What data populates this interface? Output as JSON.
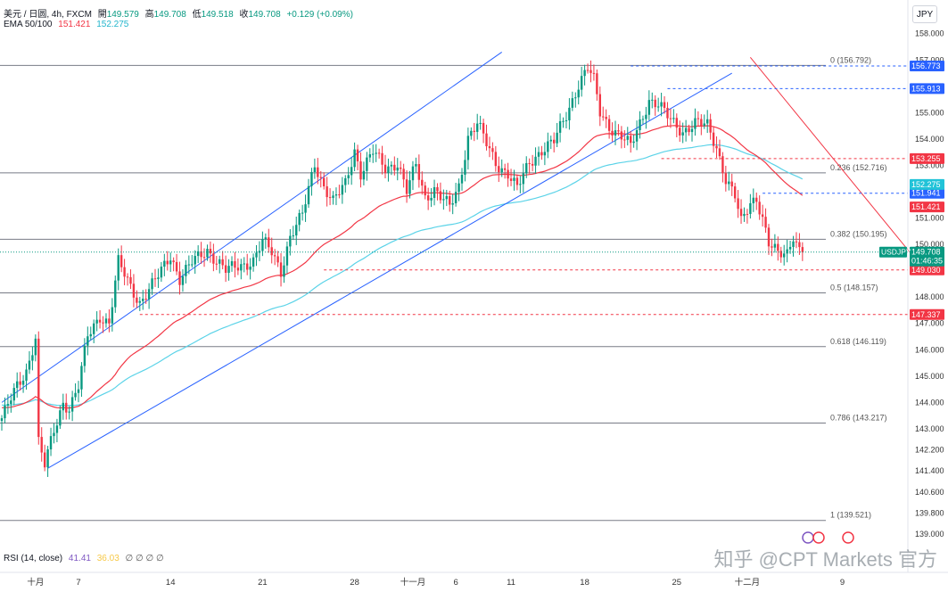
{
  "header": {
    "symbol_line": "美元 / 日圆, 4h, FXCM",
    "open_label": "開",
    "open": "149.579",
    "high_label": "高",
    "high": "149.708",
    "low_label": "低",
    "low": "149.518",
    "close_label": "收",
    "close": "149.708",
    "change": "+0.129 (+0.09%)",
    "ema_label": "EMA 50/100",
    "ema50": "151.421",
    "ema100": "152.275"
  },
  "currency": "JPY",
  "rsi": {
    "label": "RSI (14, close)",
    "value1": "41.41",
    "value2": "36.03",
    "zeros": "∅ ∅ ∅ ∅"
  },
  "watermark": "知乎 @CPT Markets 官方",
  "colors": {
    "up": "#089981",
    "down": "#f23645",
    "ema50": "#f23645",
    "ema100": "#5bd3e8",
    "channel": "#2962ff",
    "blue_level": "#2962ff",
    "red_level": "#f23645",
    "fib": "#787b86"
  },
  "chart_data": {
    "type": "candlestick",
    "symbol": "USDJPY",
    "timeframe": "4h",
    "ylim": [
      138.8,
      158.6
    ],
    "y_ticks": [
      "158.000",
      "157.000",
      "155.000",
      "154.000",
      "153.000",
      "151.000",
      "150.000",
      "149.000",
      "148.000",
      "147.000",
      "146.000",
      "145.000",
      "144.000",
      "143.000",
      "142.200",
      "141.400",
      "140.600",
      "139.800",
      "139.000"
    ],
    "y_tick_values": [
      158.0,
      157.0,
      155.0,
      154.0,
      153.0,
      151.0,
      150.0,
      149.0,
      148.0,
      147.0,
      146.0,
      145.0,
      144.0,
      143.0,
      142.2,
      141.4,
      140.6,
      139.8,
      139.0
    ],
    "x_ticks": [
      {
        "label": "十月",
        "index": 11
      },
      {
        "label": "7",
        "index": 25
      },
      {
        "label": "14",
        "index": 55
      },
      {
        "label": "21",
        "index": 85
      },
      {
        "label": "28",
        "index": 115
      },
      {
        "label": "十一月",
        "index": 134
      },
      {
        "label": "6",
        "index": 148
      },
      {
        "label": "11",
        "index": 166
      },
      {
        "label": "18",
        "index": 190
      },
      {
        "label": "25",
        "index": 220
      },
      {
        "label": "十二月",
        "index": 243
      },
      {
        "label": "9",
        "index": 274
      }
    ],
    "candle_count": 286,
    "last_index": 261,
    "anchors": [
      [
        0,
        143.4
      ],
      [
        5,
        144.6
      ],
      [
        8,
        145.2
      ],
      [
        11,
        146.5
      ],
      [
        12,
        142.5
      ],
      [
        14,
        141.6
      ],
      [
        17,
        142.9
      ],
      [
        20,
        144.0
      ],
      [
        22,
        143.8
      ],
      [
        25,
        144.6
      ],
      [
        28,
        146.5
      ],
      [
        32,
        147.3
      ],
      [
        35,
        147.0
      ],
      [
        38,
        149.3
      ],
      [
        42,
        148.4
      ],
      [
        45,
        147.8
      ],
      [
        50,
        148.6
      ],
      [
        55,
        149.6
      ],
      [
        58,
        148.7
      ],
      [
        62,
        149.3
      ],
      [
        67,
        149.8
      ],
      [
        70,
        149.4
      ],
      [
        73,
        149.0
      ],
      [
        78,
        149.2
      ],
      [
        82,
        149.4
      ],
      [
        85,
        150.1
      ],
      [
        88,
        149.7
      ],
      [
        91,
        149.0
      ],
      [
        94,
        150.3
      ],
      [
        98,
        151.1
      ],
      [
        102,
        153.1
      ],
      [
        105,
        152.2
      ],
      [
        108,
        151.6
      ],
      [
        112,
        152.3
      ],
      [
        115,
        153.6
      ],
      [
        117,
        152.7
      ],
      [
        121,
        153.5
      ],
      [
        125,
        152.9
      ],
      [
        129,
        153.1
      ],
      [
        132,
        152.0
      ],
      [
        135,
        153.0
      ],
      [
        138,
        151.8
      ],
      [
        141,
        152.1
      ],
      [
        143,
        151.8
      ],
      [
        146,
        151.4
      ],
      [
        149,
        152.2
      ],
      [
        152,
        154.1
      ],
      [
        155,
        154.6
      ],
      [
        158,
        153.8
      ],
      [
        161,
        153.1
      ],
      [
        165,
        152.7
      ],
      [
        168,
        152.1
      ],
      [
        172,
        153.1
      ],
      [
        176,
        153.6
      ],
      [
        180,
        153.9
      ],
      [
        184,
        154.9
      ],
      [
        188,
        156.1
      ],
      [
        191,
        156.7
      ],
      [
        193,
        156.2
      ],
      [
        195,
        155.0
      ],
      [
        198,
        154.5
      ],
      [
        202,
        154.1
      ],
      [
        205,
        153.7
      ],
      [
        208,
        154.6
      ],
      [
        211,
        155.5
      ],
      [
        214,
        155.3
      ],
      [
        218,
        154.7
      ],
      [
        222,
        154.3
      ],
      [
        226,
        154.6
      ],
      [
        230,
        154.5
      ],
      [
        233,
        153.7
      ],
      [
        236,
        152.5
      ],
      [
        239,
        151.8
      ],
      [
        241,
        150.8
      ],
      [
        244,
        151.6
      ],
      [
        246,
        151.8
      ],
      [
        248,
        151.0
      ],
      [
        250,
        150.0
      ],
      [
        253,
        149.6
      ],
      [
        256,
        149.7
      ],
      [
        258,
        150.4
      ],
      [
        260,
        149.8
      ],
      [
        262,
        149.5
      ],
      [
        264,
        148.7
      ],
      [
        266,
        149.1
      ],
      [
        268,
        149.7
      ]
    ],
    "candles_note_levels": {
      "fib": [
        {
          "label": "0 (156.792)",
          "value": 156.792
        },
        {
          "label": "0.236 (152.716)",
          "value": 152.716
        },
        {
          "label": "0.382 (150.195)",
          "value": 150.195
        },
        {
          "label": "0.5 (148.157)",
          "value": 148.157
        },
        {
          "label": "0.618 (146.119)",
          "value": 146.119
        },
        {
          "label": "0.786 (143.217)",
          "value": 143.217
        },
        {
          "label": "1 (139.521)",
          "value": 139.521
        }
      ],
      "horizontal_levels": [
        {
          "label": "156.773",
          "value": 156.773,
          "color": "#2962ff",
          "start_index": 205
        },
        {
          "label": "155.913",
          "value": 155.913,
          "color": "#2962ff",
          "start_index": 217
        },
        {
          "label": "153.255",
          "value": 153.255,
          "color": "#f23645",
          "start_index": 215
        },
        {
          "label": "151.941",
          "value": 151.941,
          "color": "#2962ff",
          "start_index": 248
        },
        {
          "label": "149.030",
          "value": 149.03,
          "color": "#f23645",
          "start_index": 105
        },
        {
          "label": "147.337",
          "value": 147.337,
          "color": "#f23645",
          "start_index": 45
        }
      ],
      "price_labels": [
        {
          "label": "152.275",
          "value": 152.275,
          "bg": "#22c3d8"
        },
        {
          "label": "151.421",
          "value": 151.421,
          "bg": "#f23645"
        },
        {
          "label": "149.708",
          "value": 149.708,
          "bg": "#089981",
          "sub": "01:46:35"
        }
      ],
      "current_symbol_label": "USDJPY",
      "trend_lines": [
        {
          "name": "channel-upper",
          "color": "#2962ff",
          "from": [
            0,
            144.0
          ],
          "to": [
            163,
            157.3
          ]
        },
        {
          "name": "channel-lower",
          "color": "#2962ff",
          "from": [
            15,
            141.5
          ],
          "to": [
            238,
            156.5
          ]
        },
        {
          "name": "downtrend",
          "color": "#f23645",
          "from": [
            244,
            157.1
          ],
          "to": [
            296,
            149.7
          ]
        }
      ]
    }
  }
}
